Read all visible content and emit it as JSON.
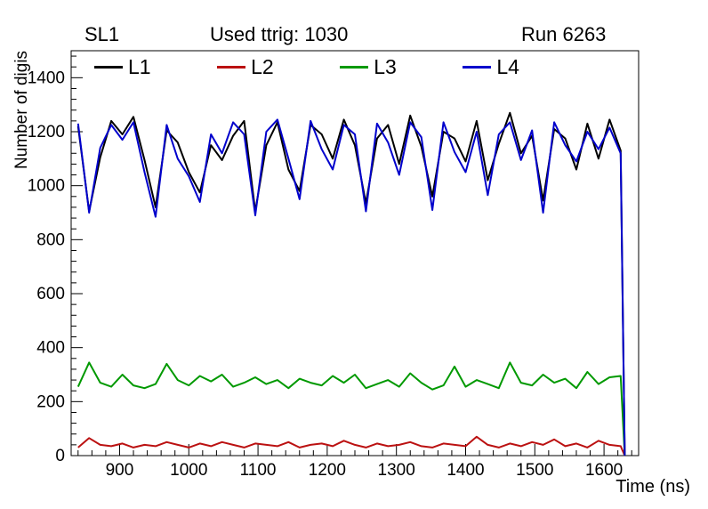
{
  "header": {
    "left_label": "SL1",
    "title": "Used ttrig: 1030",
    "right_label": "Run 6263"
  },
  "axes": {
    "y_label": "Number of digis",
    "x_label": "Time (ns)"
  },
  "chart_data": {
    "type": "line",
    "title": "Used ttrig: 1030",
    "xlabel": "Time (ns)",
    "ylabel": "Number of digis",
    "xlim": [
      830,
      1650
    ],
    "ylim": [
      0,
      1500
    ],
    "x_ticks": [
      900,
      1000,
      1100,
      1200,
      1300,
      1400,
      1500,
      1600
    ],
    "y_ticks": [
      0,
      200,
      400,
      600,
      800,
      1000,
      1200,
      1400
    ],
    "x_minor_step": 20,
    "y_minor_step": 40,
    "grid": false,
    "legend_position": "top-inside",
    "x": [
      840,
      856,
      872,
      888,
      904,
      920,
      936,
      952,
      968,
      984,
      1000,
      1016,
      1032,
      1048,
      1064,
      1080,
      1096,
      1112,
      1128,
      1144,
      1160,
      1176,
      1192,
      1208,
      1224,
      1240,
      1256,
      1272,
      1288,
      1304,
      1320,
      1336,
      1352,
      1368,
      1384,
      1400,
      1416,
      1432,
      1448,
      1464,
      1480,
      1496,
      1512,
      1528,
      1544,
      1560,
      1576,
      1592,
      1608,
      1624,
      1630
    ],
    "series": [
      {
        "name": "L1",
        "color": "#000000",
        "values": [
          1220,
          905,
          1105,
          1240,
          1190,
          1255,
          1095,
          920,
          1205,
          1160,
          1050,
          975,
          1150,
          1095,
          1185,
          1240,
          905,
          1150,
          1235,
          1060,
          980,
          1225,
          1190,
          1100,
          1245,
          1150,
          935,
          1175,
          1225,
          1080,
          1260,
          1145,
          960,
          1200,
          1175,
          1090,
          1240,
          1020,
          1155,
          1270,
          1120,
          1185,
          945,
          1210,
          1175,
          1060,
          1230,
          1100,
          1245,
          1130,
          0
        ]
      },
      {
        "name": "L2",
        "color": "#bb1111",
        "values": [
          30,
          65,
          40,
          35,
          45,
          30,
          40,
          35,
          50,
          40,
          30,
          45,
          35,
          50,
          40,
          30,
          45,
          40,
          35,
          50,
          30,
          40,
          45,
          35,
          55,
          40,
          30,
          45,
          35,
          40,
          50,
          35,
          30,
          45,
          40,
          35,
          70,
          40,
          30,
          45,
          35,
          50,
          40,
          60,
          35,
          45,
          30,
          55,
          40,
          35,
          0
        ]
      },
      {
        "name": "L3",
        "color": "#009900",
        "values": [
          255,
          345,
          270,
          255,
          300,
          260,
          250,
          265,
          340,
          280,
          260,
          295,
          275,
          300,
          255,
          270,
          290,
          265,
          280,
          250,
          285,
          270,
          260,
          295,
          270,
          300,
          250,
          265,
          280,
          255,
          305,
          270,
          245,
          260,
          330,
          255,
          280,
          265,
          250,
          345,
          270,
          260,
          300,
          270,
          285,
          250,
          310,
          265,
          290,
          295,
          0
        ]
      },
      {
        "name": "L4",
        "color": "#0000cc",
        "values": [
          1230,
          900,
          1140,
          1225,
          1170,
          1235,
          1050,
          885,
          1225,
          1100,
          1035,
          940,
          1190,
          1120,
          1235,
          1190,
          890,
          1200,
          1245,
          1100,
          950,
          1240,
          1135,
          1060,
          1225,
          1190,
          905,
          1230,
          1160,
          1040,
          1235,
          1180,
          910,
          1235,
          1125,
          1050,
          1200,
          965,
          1190,
          1235,
          1095,
          1205,
          900,
          1235,
          1150,
          1090,
          1200,
          1135,
          1215,
          1120,
          0
        ]
      }
    ]
  }
}
